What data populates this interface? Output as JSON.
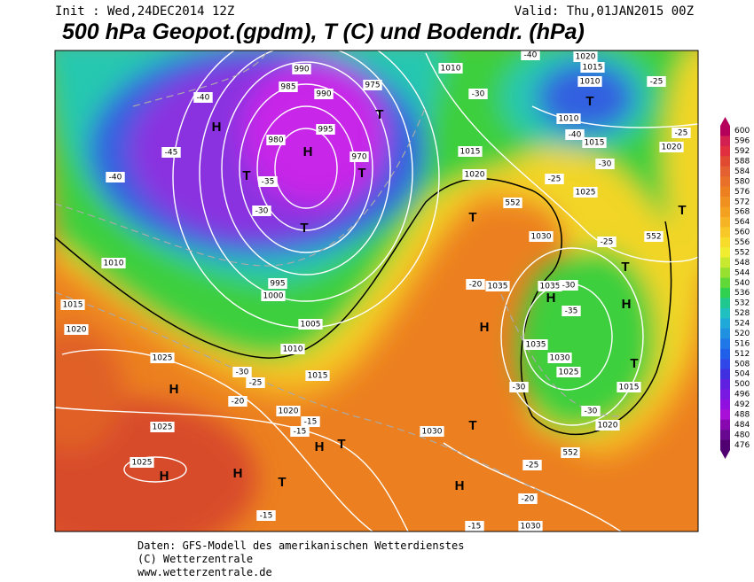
{
  "header": {
    "init": "Init : Wed,24DEC2014 12Z",
    "valid": "Valid: Thu,01JAN2015 00Z",
    "title": "500 hPa Geopot.(gpdm), T (C) und Bodendr. (hPa)"
  },
  "colorbar": {
    "labels": [
      600,
      596,
      592,
      588,
      584,
      580,
      576,
      572,
      568,
      564,
      560,
      556,
      552,
      548,
      544,
      540,
      536,
      532,
      528,
      524,
      520,
      516,
      512,
      508,
      504,
      500,
      496,
      492,
      488,
      484,
      480,
      476
    ],
    "colors": [
      "#b4005a",
      "#d22050",
      "#e03040",
      "#e04a30",
      "#e46030",
      "#e87028",
      "#ec8020",
      "#f09020",
      "#f4a020",
      "#f6b424",
      "#f8c828",
      "#f8dc2c",
      "#f0ec30",
      "#c8e830",
      "#98e030",
      "#60d838",
      "#30d050",
      "#20c890",
      "#20c0c0",
      "#20a8d8",
      "#2090e0",
      "#2078e8",
      "#2060e8",
      "#3048e8",
      "#4030e0",
      "#6020e0",
      "#7818e0",
      "#9010e0",
      "#a810d8",
      "#8808b0",
      "#680890",
      "#500070"
    ]
  },
  "map_labels": {
    "centers": [
      "H",
      "H",
      "H",
      "H",
      "T",
      "T",
      "H",
      "T",
      "H",
      "T",
      "H",
      "T",
      "H",
      "T",
      "T",
      "T",
      "T",
      "T",
      "H",
      "T",
      "H",
      "T"
    ],
    "isobars": [
      "1025",
      "1025",
      "1020",
      "1015",
      "1010",
      "1005",
      "1000",
      "995",
      "1010",
      "1015",
      "1020",
      "1025",
      "1030",
      "1030",
      "1035",
      "1035",
      "1030",
      "1025",
      "1020",
      "1015",
      "1010",
      "1020",
      "1015",
      "1010",
      "1010",
      "1015",
      "1020",
      "1035",
      "1030",
      "1025",
      "1015",
      "1020",
      "990",
      "985",
      "990",
      "975",
      "995",
      "980",
      "970"
    ],
    "temps": [
      "-40",
      "-45",
      "-40",
      "-35",
      "-30",
      "-30",
      "-25",
      "-20",
      "-15",
      "-15",
      "-20",
      "-30",
      "-35",
      "-30",
      "-30",
      "-25",
      "-25",
      "-30",
      "-40",
      "-30",
      "-25",
      "-25",
      "-20",
      "-25",
      "-15",
      "552",
      "552",
      "552",
      "-15",
      "-40"
    ]
  },
  "footer": {
    "line1": "Daten: GFS-Modell des amerikanischen Wetterdienstes",
    "line2": "(C) Wetterzentrale",
    "line3": "www.wetterzentrale.de"
  }
}
